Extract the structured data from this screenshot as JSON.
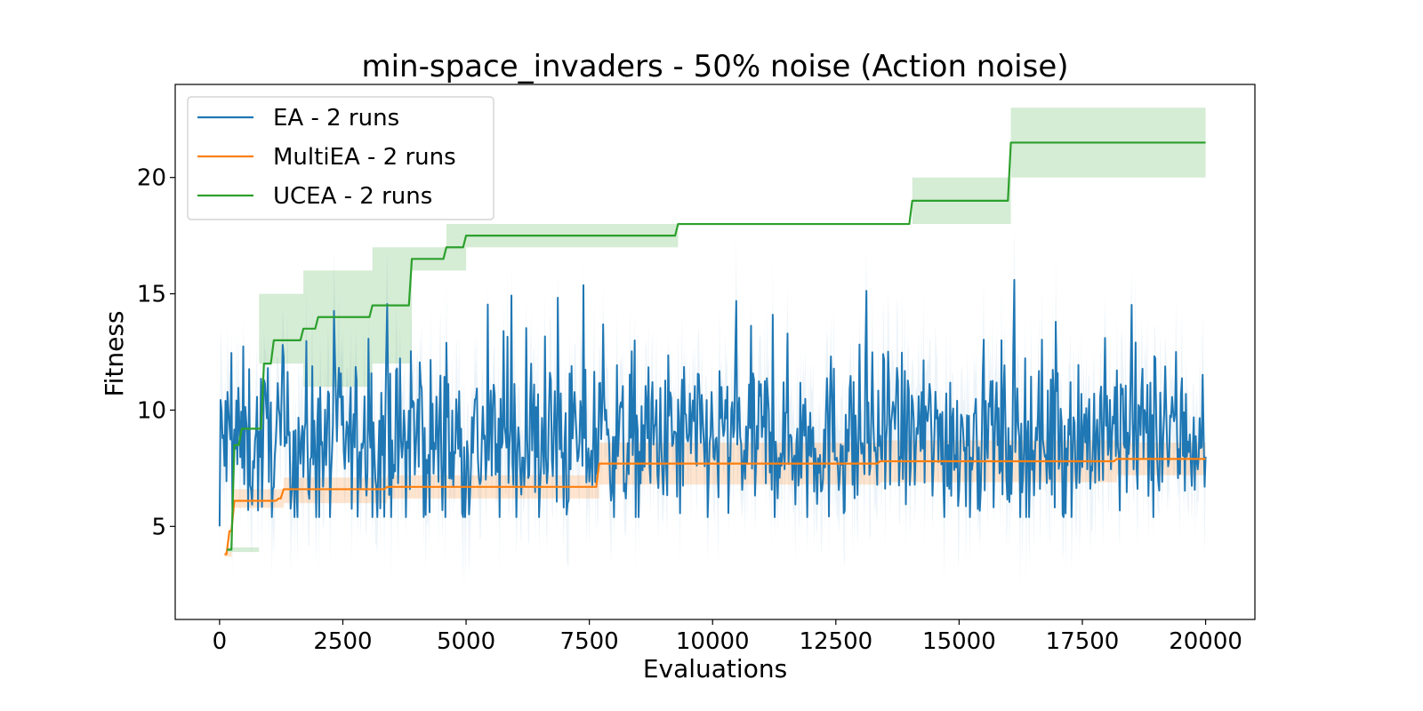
{
  "chart_data": {
    "type": "line",
    "title": "min-space_invaders - 50% noise (Action noise)",
    "xlabel": "Evaluations",
    "ylabel": "Fitness",
    "xlim": [
      -900,
      21000
    ],
    "ylim": [
      1,
      24
    ],
    "xticks": [
      0,
      2500,
      5000,
      7500,
      10000,
      12500,
      15000,
      17500,
      20000
    ],
    "yticks": [
      5,
      10,
      15,
      20
    ],
    "grid": false,
    "legend_position": "top-left",
    "series": [
      {
        "name": "EA - 2 runs",
        "color": "#1f77b4",
        "style": "noisy",
        "x_start": 0,
        "x_end": 20000,
        "step": 20,
        "first_value": 5.0,
        "mean": 8.7,
        "spread": 1.8,
        "trend": [
          [
            0,
            8.6
          ],
          [
            7500,
            8.6
          ],
          [
            15000,
            8.9
          ],
          [
            20000,
            9.0
          ]
        ],
        "final_value": 8.0,
        "band_width": 2.2
      },
      {
        "name": "MultiEA - 2 runs",
        "color": "#ff7f0e",
        "style": "step",
        "points": [
          [
            100,
            3.8
          ],
          [
            200,
            4.8
          ],
          [
            300,
            6.1
          ],
          [
            1200,
            6.2
          ],
          [
            1300,
            6.6
          ],
          [
            3400,
            6.7
          ],
          [
            7700,
            7.7
          ],
          [
            13400,
            7.8
          ],
          [
            18200,
            7.9
          ],
          [
            20000,
            7.9
          ]
        ],
        "band": [
          [
            100,
            3.7,
            3.9
          ],
          [
            250,
            5.8,
            6.6
          ],
          [
            1300,
            6.0,
            7.1
          ],
          [
            3400,
            6.2,
            7.2
          ],
          [
            7700,
            6.8,
            8.6
          ],
          [
            13400,
            6.9,
            8.7
          ],
          [
            18200,
            7.2,
            8.6
          ],
          [
            20000,
            7.2,
            8.6
          ]
        ]
      },
      {
        "name": "UCEA - 2 runs",
        "color": "#2ca02c",
        "style": "step",
        "points": [
          [
            150,
            4.0
          ],
          [
            300,
            8.5
          ],
          [
            450,
            9.2
          ],
          [
            800,
            9.2
          ],
          [
            900,
            12.0
          ],
          [
            1100,
            13.0
          ],
          [
            1700,
            13.5
          ],
          [
            2000,
            14.0
          ],
          [
            3100,
            14.5
          ],
          [
            3900,
            16.5
          ],
          [
            4600,
            17.0
          ],
          [
            5000,
            17.5
          ],
          [
            9300,
            18.0
          ],
          [
            14050,
            19.0
          ],
          [
            16050,
            21.5
          ],
          [
            20000,
            21.5
          ]
        ],
        "band": [
          [
            150,
            3.9,
            4.1
          ],
          [
            800,
            12.0,
            15.0
          ],
          [
            1700,
            11.0,
            16.0
          ],
          [
            3100,
            12.0,
            17.0
          ],
          [
            3900,
            16.0,
            17.0
          ],
          [
            4600,
            16.0,
            18.0
          ],
          [
            5000,
            17.0,
            18.0
          ],
          [
            9300,
            18.0,
            18.0
          ],
          [
            14050,
            18.0,
            20.0
          ],
          [
            16050,
            20.0,
            23.0
          ],
          [
            20000,
            20.0,
            23.0
          ]
        ]
      }
    ]
  }
}
